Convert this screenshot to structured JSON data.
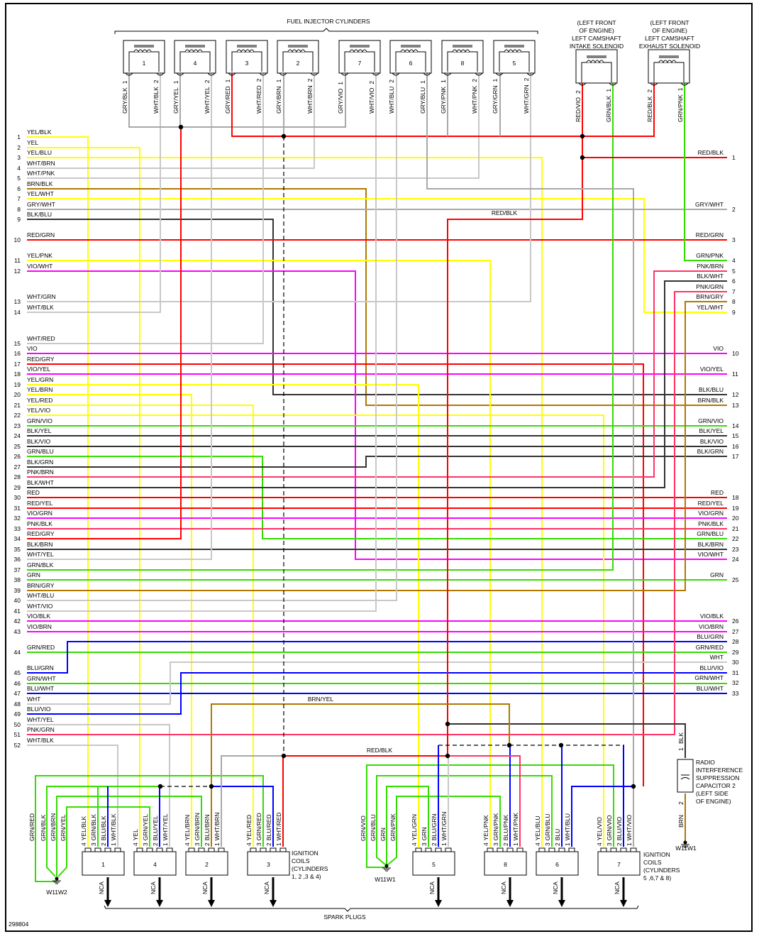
{
  "figure_id": "298804",
  "titles": {
    "injectors": "FUEL INJECTOR CYLINDERS",
    "spark_plugs": "SPARK PLUGS"
  },
  "left_connector": [
    {
      "pin": "1",
      "wire": "YEL/BLK"
    },
    {
      "pin": "2",
      "wire": "YEL"
    },
    {
      "pin": "3",
      "wire": "YEL/BLU"
    },
    {
      "pin": "4",
      "wire": "WHT/BRN"
    },
    {
      "pin": "5",
      "wire": "WHT/PNK"
    },
    {
      "pin": "6",
      "wire": "BRN/BLK"
    },
    {
      "pin": "7",
      "wire": "YEL/WHT"
    },
    {
      "pin": "8",
      "wire": "GRY/WHT"
    },
    {
      "pin": "9",
      "wire": "BLK/BLU"
    },
    {
      "pin": "10",
      "wire": "RED/GRN"
    },
    {
      "pin": "11",
      "wire": "YEL/PNK"
    },
    {
      "pin": "12",
      "wire": "VIO/WHT"
    },
    {
      "pin": "13",
      "wire": "WHT/GRN"
    },
    {
      "pin": "14",
      "wire": "WHT/BLK"
    },
    {
      "pin": "15",
      "wire": "WHT/RED"
    },
    {
      "pin": "16",
      "wire": "VIO"
    },
    {
      "pin": "17",
      "wire": "RED/GRY"
    },
    {
      "pin": "18",
      "wire": "VIO/YEL"
    },
    {
      "pin": "19",
      "wire": "YEL/GRN"
    },
    {
      "pin": "20",
      "wire": "YEL/BRN"
    },
    {
      "pin": "21",
      "wire": "YEL/RED"
    },
    {
      "pin": "22",
      "wire": "YEL/VIO"
    },
    {
      "pin": "23",
      "wire": "GRN/VIO"
    },
    {
      "pin": "24",
      "wire": "BLK/YEL"
    },
    {
      "pin": "25",
      "wire": "BLK/VIO"
    },
    {
      "pin": "26",
      "wire": "GRN/BLU"
    },
    {
      "pin": "27",
      "wire": "BLK/GRN"
    },
    {
      "pin": "28",
      "wire": "PNK/BRN"
    },
    {
      "pin": "29",
      "wire": "BLK/WHT"
    },
    {
      "pin": "30",
      "wire": "RED"
    },
    {
      "pin": "31",
      "wire": "RED/YEL"
    },
    {
      "pin": "32",
      "wire": "VIO/GRN"
    },
    {
      "pin": "33",
      "wire": "PNK/BLK"
    },
    {
      "pin": "34",
      "wire": "RED/GRY"
    },
    {
      "pin": "35",
      "wire": "BLK/BRN"
    },
    {
      "pin": "36",
      "wire": "WHT/YEL"
    },
    {
      "pin": "37",
      "wire": "GRN/BLK"
    },
    {
      "pin": "38",
      "wire": "GRN"
    },
    {
      "pin": "39",
      "wire": "BRN/GRY"
    },
    {
      "pin": "40",
      "wire": "WHT/BLU"
    },
    {
      "pin": "41",
      "wire": "WHT/VIO"
    },
    {
      "pin": "42",
      "wire": "VIO/BLK"
    },
    {
      "pin": "43",
      "wire": "VIO/BRN"
    },
    {
      "pin": "44",
      "wire": "GRN/RED"
    },
    {
      "pin": "45",
      "wire": "BLU/GRN"
    },
    {
      "pin": "46",
      "wire": "GRN/WHT"
    },
    {
      "pin": "47",
      "wire": "BLU/WHT"
    },
    {
      "pin": "48",
      "wire": "WHT"
    },
    {
      "pin": "49",
      "wire": "BLU/VIO"
    },
    {
      "pin": "50",
      "wire": "WHT/YEL"
    },
    {
      "pin": "51",
      "wire": "PNK/GRN"
    },
    {
      "pin": "52",
      "wire": "WHT/BLK"
    }
  ],
  "right_connector": [
    {
      "pin": "1",
      "wire": "RED/BLK"
    },
    {
      "pin": "2",
      "wire": "GRY/WHT"
    },
    {
      "pin": "3",
      "wire": "RED/GRN"
    },
    {
      "pin": "4",
      "wire": "GRN/PNK"
    },
    {
      "pin": "5",
      "wire": "PNK/BRN"
    },
    {
      "pin": "6",
      "wire": "BLK/WHT"
    },
    {
      "pin": "7",
      "wire": "PNK/GRN"
    },
    {
      "pin": "8",
      "wire": "BRN/GRY"
    },
    {
      "pin": "9",
      "wire": "YEL/WHT"
    },
    {
      "pin": "10",
      "wire": "VIO"
    },
    {
      "pin": "11",
      "wire": "VIO/YEL"
    },
    {
      "pin": "12",
      "wire": "BLK/BLU"
    },
    {
      "pin": "13",
      "wire": "BRN/BLK"
    },
    {
      "pin": "14",
      "wire": "GRN/VIO"
    },
    {
      "pin": "15",
      "wire": "BLK/YEL"
    },
    {
      "pin": "16",
      "wire": "BLK/VIO"
    },
    {
      "pin": "17",
      "wire": "BLK/GRN"
    },
    {
      "pin": "18",
      "wire": "RED"
    },
    {
      "pin": "19",
      "wire": "RED/YEL"
    },
    {
      "pin": "20",
      "wire": "VIO/GRN"
    },
    {
      "pin": "21",
      "wire": "PNK/BLK"
    },
    {
      "pin": "22",
      "wire": "GRN/BLU"
    },
    {
      "pin": "23",
      "wire": "BLK/BRN"
    },
    {
      "pin": "24",
      "wire": "VIO/WHT"
    },
    {
      "pin": "25",
      "wire": "GRN"
    },
    {
      "pin": "26",
      "wire": "VIO/BLK"
    },
    {
      "pin": "27",
      "wire": "VIO/BRN"
    },
    {
      "pin": "28",
      "wire": "BLU/GRN"
    },
    {
      "pin": "29",
      "wire": "GRN/RED"
    },
    {
      "pin": "30",
      "wire": "WHT"
    },
    {
      "pin": "31",
      "wire": "BLU/VIO"
    },
    {
      "pin": "32",
      "wire": "GRN/WHT"
    },
    {
      "pin": "33",
      "wire": "BLU/WHT"
    }
  ],
  "injectors": [
    {
      "cyl": "1",
      "pins": [
        {
          "num": "1",
          "wire": "GRY/BLK"
        },
        {
          "num": "2",
          "wire": "WHT/BLK"
        }
      ]
    },
    {
      "cyl": "4",
      "pins": [
        {
          "num": "1",
          "wire": "GRY/YEL"
        },
        {
          "num": "2",
          "wire": "WHT/YEL"
        }
      ]
    },
    {
      "cyl": "3",
      "pins": [
        {
          "num": "1",
          "wire": "GRY/RED"
        },
        {
          "num": "2",
          "wire": "WHT/RED"
        }
      ]
    },
    {
      "cyl": "2",
      "pins": [
        {
          "num": "1",
          "wire": "GRY/BRN"
        },
        {
          "num": "2",
          "wire": "WHT/BRN"
        }
      ]
    },
    {
      "cyl": "7",
      "pins": [
        {
          "num": "1",
          "wire": "GRY/VIO"
        },
        {
          "num": "2",
          "wire": "WHT/VIO"
        }
      ]
    },
    {
      "cyl": "6",
      "pins": [
        {
          "num": "2",
          "wire": "WHT/BLU"
        },
        {
          "num": "1",
          "wire": "GRY/BLU"
        }
      ]
    },
    {
      "cyl": "8",
      "pins": [
        {
          "num": "1",
          "wire": "GRY/PNK"
        },
        {
          "num": "2",
          "wire": "WHT/PNK"
        }
      ]
    },
    {
      "cyl": "5",
      "pins": [
        {
          "num": "1",
          "wire": "GRY/GRN"
        },
        {
          "num": "2",
          "wire": "WHT/GRN"
        }
      ]
    }
  ],
  "solenoids": [
    {
      "title": [
        "(LEFT FRONT",
        "OF ENGINE)",
        "LEFT CAMSHAFT",
        "INTAKE SOLENOID"
      ],
      "pins": [
        {
          "num": "2",
          "wire": "RED/VIO"
        },
        {
          "num": "1",
          "wire": "GRN/BLK"
        }
      ]
    },
    {
      "title": [
        "(LEFT FRONT",
        "OF ENGINE)",
        "LEFT CAMSHAFT",
        "EXHAUST SOLENOID"
      ],
      "pins": [
        {
          "num": "2",
          "wire": "RED/BLK"
        },
        {
          "num": "1",
          "wire": "GRN/PNK"
        }
      ]
    }
  ],
  "coils": [
    {
      "cyl": "1",
      "output": "NCA",
      "pins": [
        {
          "num": "4",
          "wire": "YEL/BLK"
        },
        {
          "num": "3",
          "wire": "GRN/BLK"
        },
        {
          "num": "2",
          "wire": "BLU/BLK"
        },
        {
          "num": "1",
          "wire": "WHT/BLK"
        }
      ]
    },
    {
      "cyl": "4",
      "output": "NCA",
      "pins": [
        {
          "num": "4",
          "wire": "YEL"
        },
        {
          "num": "3",
          "wire": "GRN/YEL"
        },
        {
          "num": "2",
          "wire": "BLU/YEL"
        },
        {
          "num": "1",
          "wire": "WHT/YEL"
        }
      ]
    },
    {
      "cyl": "2",
      "output": "NCA",
      "pins": [
        {
          "num": "4",
          "wire": "YEL/BRN"
        },
        {
          "num": "3",
          "wire": "GRN/BRN"
        },
        {
          "num": "2",
          "wire": "BLU/BRN"
        },
        {
          "num": "1",
          "wire": "WHT/BRN"
        }
      ]
    },
    {
      "cyl": "3",
      "output": "NCA",
      "pins": [
        {
          "num": "4",
          "wire": "YEL/RED"
        },
        {
          "num": "3",
          "wire": "GRN/RED"
        },
        {
          "num": "2",
          "wire": "BLU/RED"
        },
        {
          "num": "1",
          "wire": "WHT/RED"
        }
      ]
    },
    {
      "cyl": "5",
      "output": "NCA",
      "pins": [
        {
          "num": "4",
          "wire": "YEL/GRN"
        },
        {
          "num": "3",
          "wire": "GRN"
        },
        {
          "num": "2",
          "wire": "BLU/GRN"
        },
        {
          "num": "1",
          "wire": "WHT/GRN"
        }
      ]
    },
    {
      "cyl": "8",
      "output": "NCA",
      "pins": [
        {
          "num": "4",
          "wire": "YEL/PNK"
        },
        {
          "num": "3",
          "wire": "GRN/PNK"
        },
        {
          "num": "2",
          "wire": "BLU/PNK"
        },
        {
          "num": "1",
          "wire": "WHT/PNK"
        }
      ]
    },
    {
      "cyl": "6",
      "output": "NCA",
      "pins": [
        {
          "num": "4",
          "wire": "YEL/BLU"
        },
        {
          "num": "3",
          "wire": "GRN/BLU"
        },
        {
          "num": "2",
          "wire": "BLU"
        },
        {
          "num": "1",
          "wire": "WHT/BLU"
        }
      ]
    },
    {
      "cyl": "7",
      "output": "NCA",
      "pins": [
        {
          "num": "4",
          "wire": "YEL/VIO"
        },
        {
          "num": "3",
          "wire": "GRN/VIO"
        },
        {
          "num": "2",
          "wire": "BLU/VIO"
        },
        {
          "num": "1",
          "wire": "WHT/VIO"
        }
      ]
    }
  ],
  "coil_group_labels": [
    [
      "IGNITION",
      "COILS",
      "(CYLINDERS",
      "1, 2 ,3 & 4)"
    ],
    [
      "IGNITION",
      "COILS",
      "(CYLINDERS",
      "5 ,6,7 & 8)"
    ]
  ],
  "grounds": [
    {
      "name": "W11W2",
      "wires": [
        "GRN/RED",
        "GRN/BLK",
        "GRN/BRN",
        "GRN/YEL"
      ]
    },
    {
      "name": "W11W1",
      "wires": [
        "GRN/VIO",
        "GRN/BLU",
        "GRN",
        "GRN/PNK"
      ]
    }
  ],
  "capacitor": {
    "title": [
      "RADIO",
      "INTERFERENCE",
      "SUPPRESSION",
      "CAPACITOR 2",
      "(LEFT SIDE",
      "OF ENGINE)"
    ],
    "pins": [
      {
        "num": "1",
        "wire": "BLK"
      },
      {
        "num": "2",
        "wire": "BRN"
      }
    ],
    "ground": "W11W1"
  },
  "splice_labels": [
    "RED/BLK",
    "BRN/YEL",
    "RED/BLK"
  ],
  "wire_colors": {
    "YEL": "#ffff00",
    "BLK": "#333333",
    "WHT": "#c8c8c8",
    "GRY": "#a8a8a8",
    "RED": "#ff0000",
    "GRN": "#33dd00",
    "BLU": "#0000ff",
    "VIO": "#ff00ff",
    "PNK": "#ff3366",
    "BRN": "#b07800"
  }
}
